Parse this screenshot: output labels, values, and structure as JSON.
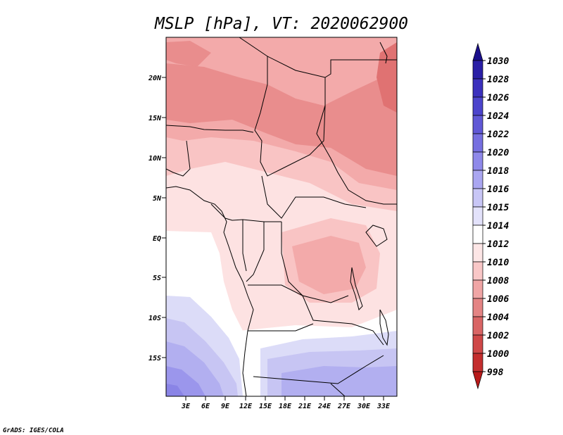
{
  "title": "MSLP [hPa], VT: 2020062900",
  "credit": "GrADS: IGES/COLA",
  "lat_ticks": [
    "20N",
    "15N",
    "10N",
    "5N",
    "EQ",
    "5S",
    "10S",
    "15S"
  ],
  "lon_ticks": [
    "3E",
    "6E",
    "9E",
    "12E",
    "15E",
    "18E",
    "21E",
    "24E",
    "27E",
    "30E",
    "33E"
  ],
  "colorbar": {
    "labels": [
      "1030",
      "1028",
      "1026",
      "1024",
      "1022",
      "1020",
      "1018",
      "1016",
      "1015",
      "1014",
      "1012",
      "1010",
      "1008",
      "1006",
      "1004",
      "1002",
      "1000",
      "998"
    ],
    "colors": [
      "#1a0f8c",
      "#2a1fa6",
      "#3b30bd",
      "#4c44cc",
      "#6058d6",
      "#766fe0",
      "#8f89ea",
      "#aaa6f1",
      "#c8c6f6",
      "#e3e2fb",
      "#ffffff",
      "#fde6e6",
      "#f9c7c7",
      "#f0a5a5",
      "#e48484",
      "#d96565",
      "#cf4848",
      "#c42e2e",
      "#b81a1a"
    ]
  },
  "field_colors": {
    "p1004": "#e07272",
    "p1006": "#e98d8d",
    "p1008": "#f3aaaa",
    "p1010": "#f9c4c4",
    "p1012": "#fde2e2",
    "p1014": "#ffffff",
    "p1015": "#dcdcf8",
    "p1016": "#c7c5f3",
    "p1018": "#b2aff0",
    "p1020": "#9b96ec",
    "p1022": "#8a84e6"
  }
}
